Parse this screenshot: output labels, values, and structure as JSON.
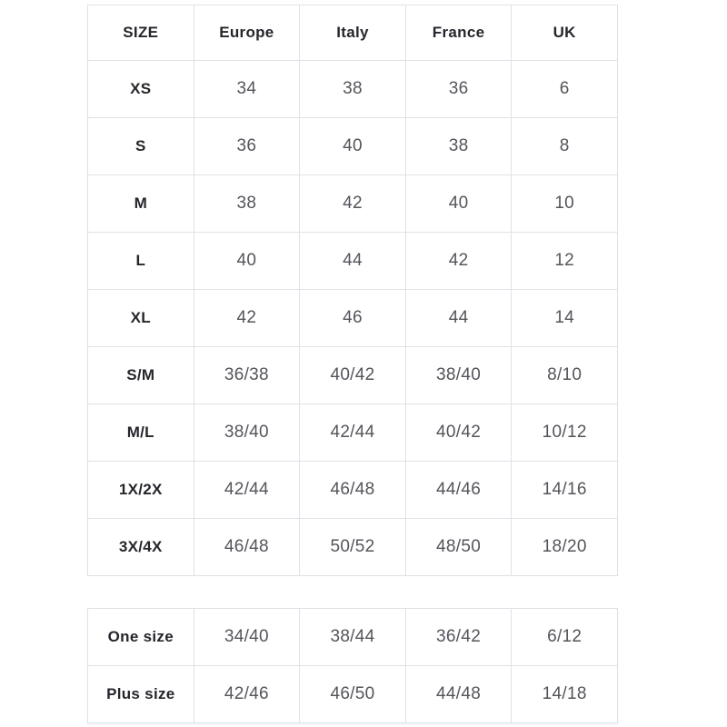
{
  "colors": {
    "page_background": "#ffffff",
    "border": "#dee2e6",
    "header_text": "#26252b",
    "value_text": "#55545b"
  },
  "main_table": {
    "headers": [
      "SIZE",
      "Europe",
      "Italy",
      "France",
      "UK"
    ],
    "rows": [
      {
        "label": "XS",
        "values": [
          "34",
          "38",
          "36",
          "6"
        ]
      },
      {
        "label": "S",
        "values": [
          "36",
          "40",
          "38",
          "8"
        ]
      },
      {
        "label": "M",
        "values": [
          "38",
          "42",
          "40",
          "10"
        ]
      },
      {
        "label": "L",
        "values": [
          "40",
          "44",
          "42",
          "12"
        ]
      },
      {
        "label": "XL",
        "values": [
          "42",
          "46",
          "44",
          "14"
        ]
      },
      {
        "label": "S/M",
        "values": [
          "36/38",
          "40/42",
          "38/40",
          "8/10"
        ]
      },
      {
        "label": "M/L",
        "values": [
          "38/40",
          "42/44",
          "40/42",
          "10/12"
        ]
      },
      {
        "label": "1X/2X",
        "values": [
          "42/44",
          "46/48",
          "44/46",
          "14/16"
        ]
      },
      {
        "label": "3X/4X",
        "values": [
          "46/48",
          "50/52",
          "48/50",
          "18/20"
        ]
      }
    ]
  },
  "secondary_table": {
    "rows": [
      {
        "label": "One size",
        "values": [
          "34/40",
          "38/44",
          "36/42",
          "6/12"
        ]
      },
      {
        "label": "Plus size",
        "values": [
          "42/46",
          "46/50",
          "44/48",
          "14/18"
        ]
      }
    ]
  }
}
